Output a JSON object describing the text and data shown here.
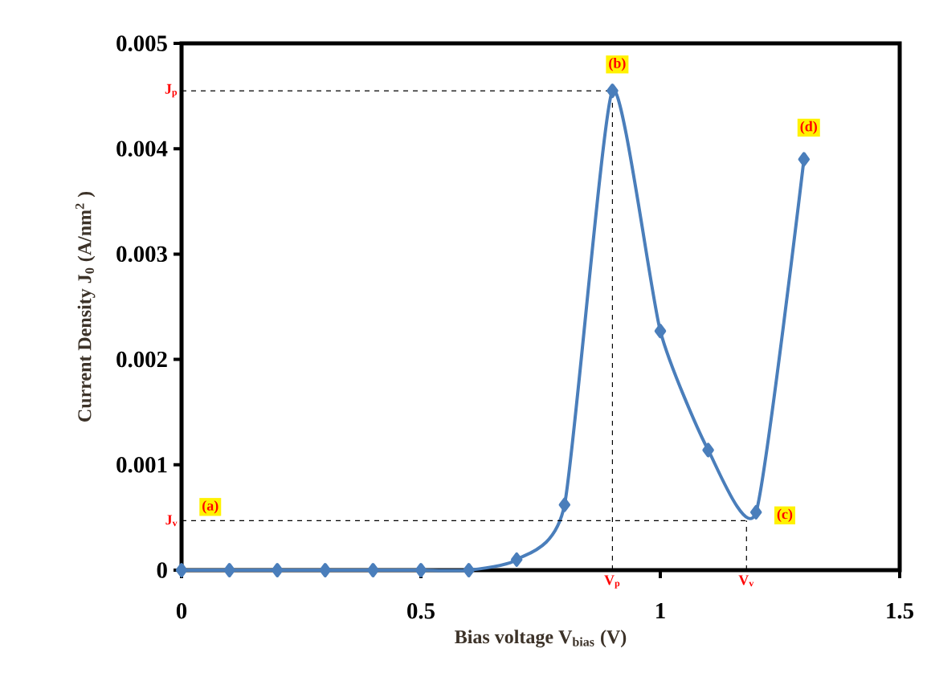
{
  "chart_data": {
    "type": "line",
    "xlabel": "Bias voltage V$_{bias}$ (V)",
    "ylabel": "Current Density J$_{0}$ (A/nm$^{2}$ )",
    "x": [
      0,
      0.1,
      0.2,
      0.3,
      0.4,
      0.5,
      0.6,
      0.7,
      0.8,
      0.9,
      1.0,
      1.1,
      1.2,
      1.3
    ],
    "series": [
      {
        "color": "#4a7ebb",
        "values": [
          0,
          0,
          0,
          0,
          0,
          0,
          0,
          0.0001,
          0.00062,
          0.00455,
          0.00227,
          0.00114,
          0.00055,
          0.0039
        ]
      }
    ],
    "xlim": [
      0,
      1.5
    ],
    "ylim": [
      0,
      0.005
    ],
    "xticks": [
      0,
      0.5,
      1,
      1.5
    ],
    "yticks": [
      0,
      0.001,
      0.002,
      0.003,
      0.004,
      0.005
    ],
    "marker": "diamond",
    "line_style": "solid",
    "ref_lines": [
      {
        "axis": "y",
        "value": 0.00455,
        "label": "J$_{p}$",
        "color": "#000000",
        "line_style": "dashed"
      },
      {
        "axis": "y",
        "value": 0.00047,
        "label": "J$_{v}$",
        "color": "#000000",
        "line_style": "dashed"
      },
      {
        "axis": "x",
        "value": 0.9,
        "label": "V$_{p}$",
        "color": "#000000",
        "line_style": "dashed"
      },
      {
        "axis": "x",
        "value": 1.18,
        "label": "V$_{v}$",
        "color": "#000000",
        "line_style": "dashed"
      }
    ],
    "annotations": [
      {
        "text": "(a)",
        "x": 0.06,
        "y": 0.0006
      },
      {
        "text": "(b)",
        "x": 0.91,
        "y": 0.0048
      },
      {
        "text": "(c)",
        "x": 1.26,
        "y": 0.00052
      },
      {
        "text": "(d)",
        "x": 1.31,
        "y": 0.0042
      }
    ]
  }
}
